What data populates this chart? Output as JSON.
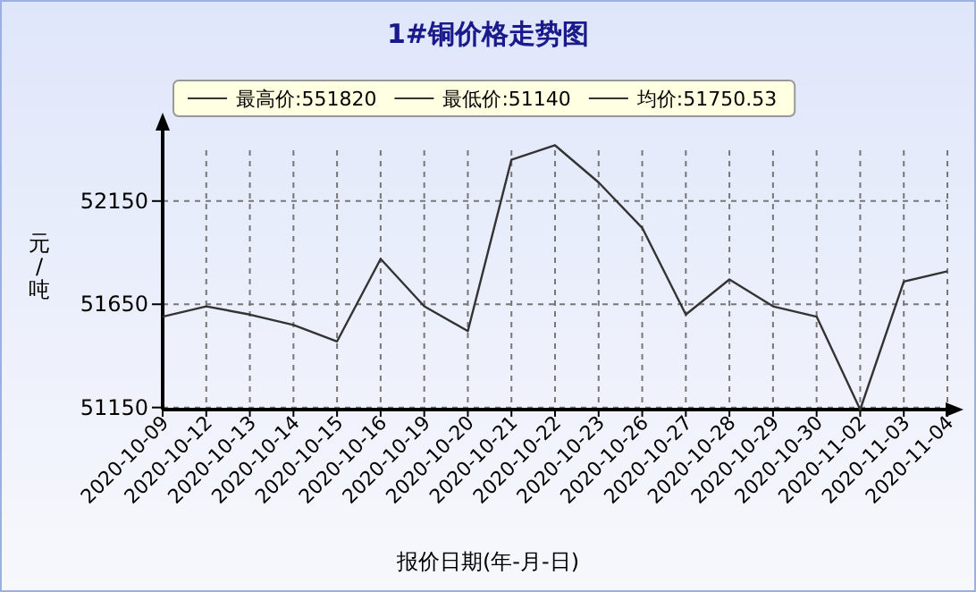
{
  "chart_data": {
    "type": "line",
    "title": "1#铜价格走势图",
    "xlabel": "报价日期(年-月-日)",
    "ylabel": "元/吨",
    "categories": [
      "2020-10-09",
      "2020-10-12",
      "2020-10-13",
      "2020-10-14",
      "2020-10-15",
      "2020-10-16",
      "2020-10-19",
      "2020-10-20",
      "2020-10-21",
      "2020-10-22",
      "2020-10-23",
      "2020-10-26",
      "2020-10-27",
      "2020-10-28",
      "2020-10-29",
      "2020-10-30",
      "2020-11-02",
      "2020-11-03",
      "2020-11-04"
    ],
    "series": [
      {
        "color": "#333333",
        "values": [
          51590,
          51640,
          51600,
          51550,
          51470,
          51870,
          51640,
          51520,
          52350,
          52420,
          52240,
          52020,
          51600,
          51770,
          51640,
          51590,
          51140,
          51760,
          51810
        ]
      }
    ],
    "annotations": [
      "最高价:551820",
      "最低价:51140",
      "均价:51750.53"
    ],
    "ylim": [
      51140,
      52500
    ],
    "yticks": [
      51150,
      51650,
      52150
    ],
    "grid": true,
    "marker": "none",
    "line_style": "solid"
  }
}
